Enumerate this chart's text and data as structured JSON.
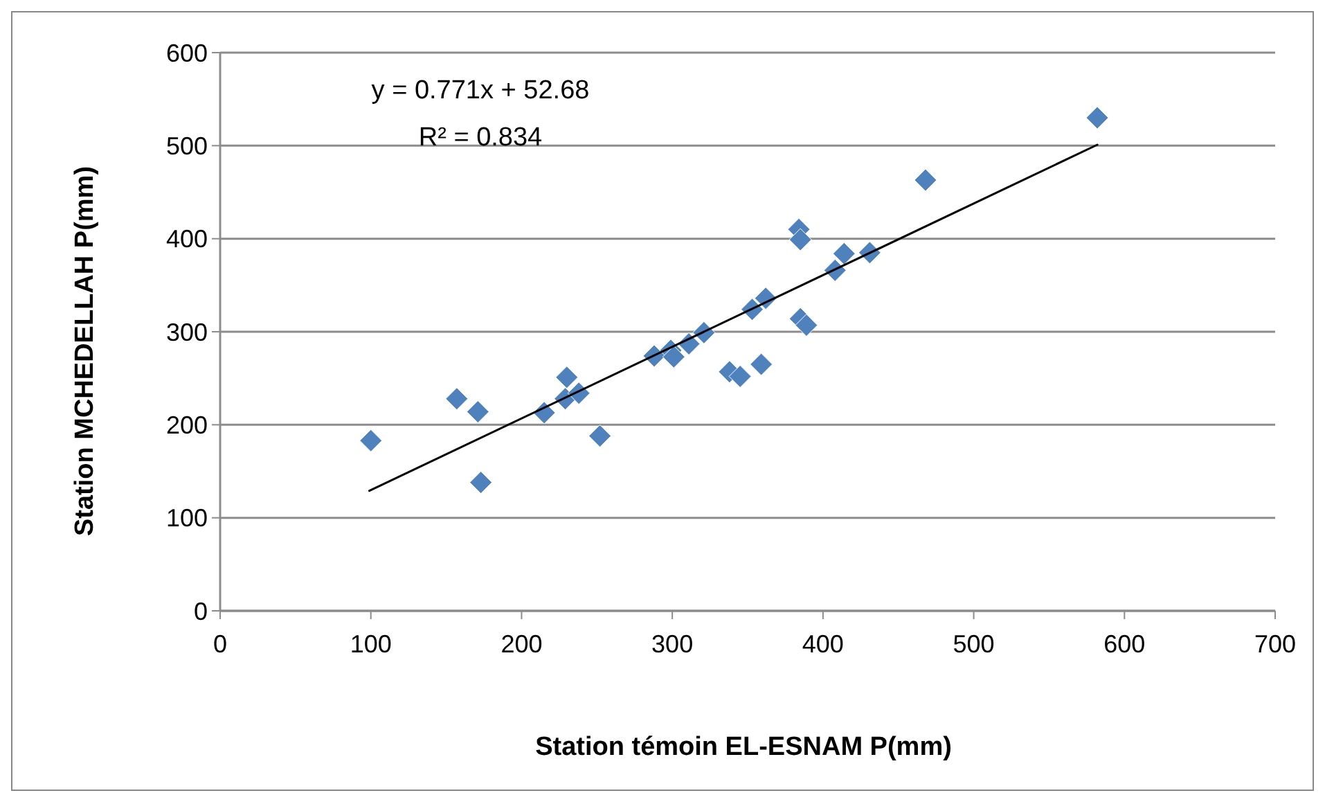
{
  "chart_data": {
    "type": "scatter",
    "xlabel": "Station témoin EL-ESNAM P(mm)",
    "ylabel": "Station MCHEDELLAH P(mm)",
    "xlim": [
      0,
      700
    ],
    "xticks": [
      0,
      100,
      200,
      300,
      400,
      500,
      600,
      700
    ],
    "ylim": [
      0,
      600
    ],
    "yticks": [
      0,
      100,
      200,
      300,
      400,
      500,
      600
    ],
    "grid": "y",
    "marker": "diamond",
    "annotations": [
      "y = 0.771x + 52.68",
      "R² = 0.834"
    ],
    "series": [
      {
        "color": "#4f81bd",
        "x": [
          100,
          157,
          171,
          173,
          215,
          229,
          230,
          238,
          252,
          288,
          299,
          301,
          311,
          321,
          338,
          345,
          359,
          353,
          362,
          384,
          385,
          385,
          389,
          408,
          414,
          431,
          468,
          582
        ],
        "values": [
          183,
          228,
          214,
          138,
          213,
          228,
          251,
          234,
          188,
          274,
          280,
          273,
          287,
          299,
          257,
          252,
          265,
          324,
          336,
          410,
          399,
          314,
          307,
          366,
          384,
          385,
          463,
          530
        ]
      },
      {
        "type": "line",
        "color": "#000000",
        "marker": "none",
        "x": [
          99,
          582
        ],
        "values": [
          129,
          501
        ]
      }
    ]
  }
}
